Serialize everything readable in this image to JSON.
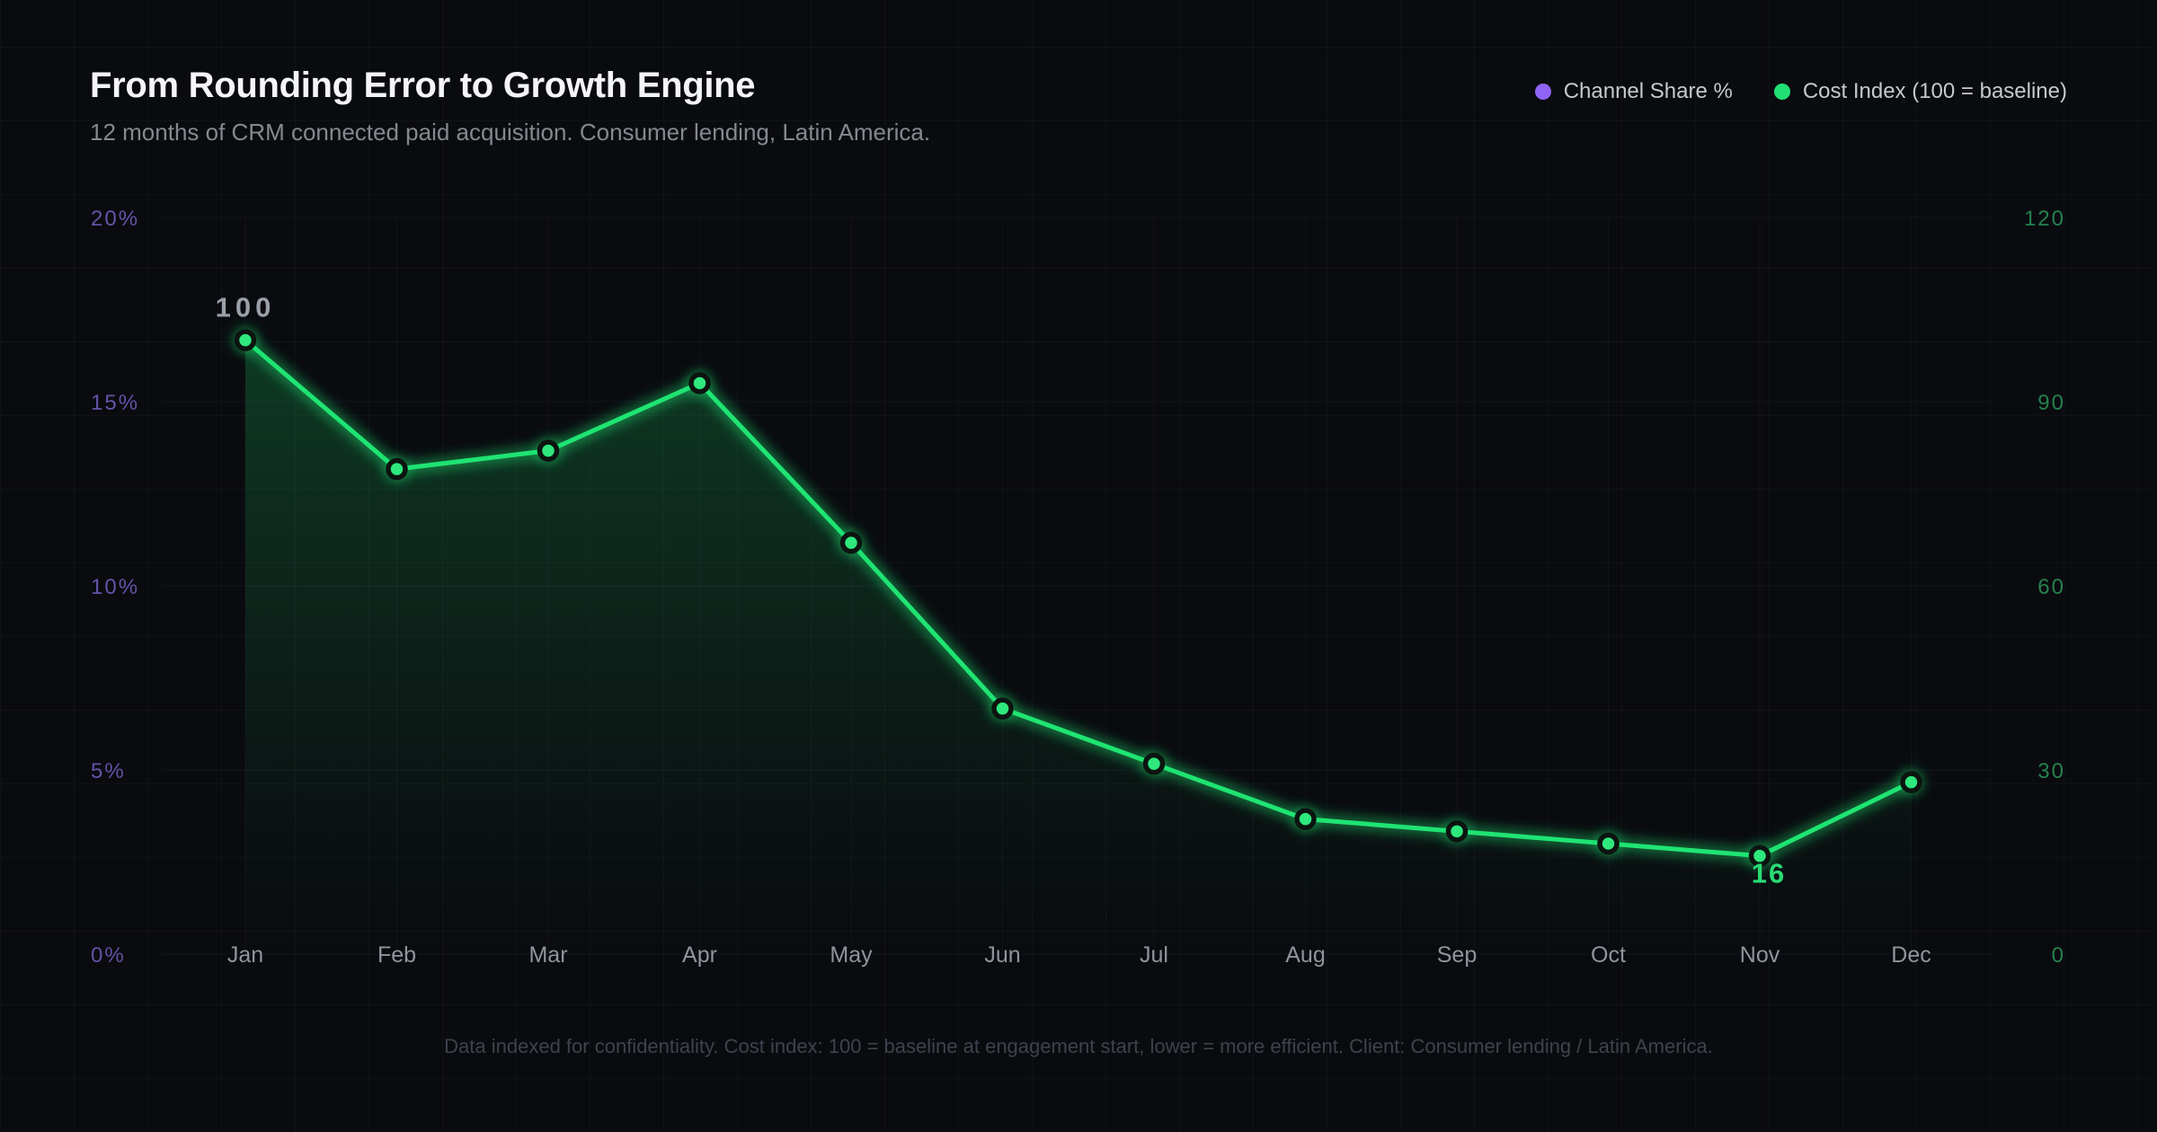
{
  "header": {
    "title": "From Rounding Error to Growth Engine",
    "subtitle": "12 months of CRM connected paid acquisition. Consumer lending, Latin America."
  },
  "legend": {
    "items": [
      {
        "label": "Channel Share %",
        "color": "#8f63f6"
      },
      {
        "label": "Cost Index (100 = baseline)",
        "color": "#22e076"
      }
    ]
  },
  "chart_data": {
    "type": "line",
    "title": "From Rounding Error to Growth Engine",
    "x": [
      "Jan",
      "Feb",
      "Mar",
      "Apr",
      "May",
      "Jun",
      "Jul",
      "Aug",
      "Sep",
      "Oct",
      "Nov",
      "Dec"
    ],
    "series": [
      {
        "name": "Cost Index (100 = baseline)",
        "axis": "right",
        "color": "#1fe472",
        "point_fill": "#2ee87d",
        "point_ring": "#0c1410",
        "values": [
          100,
          79,
          82,
          93,
          67,
          40,
          31,
          22,
          20,
          18,
          16,
          28
        ]
      }
    ],
    "legend_only_series": [
      {
        "name": "Channel Share %",
        "axis": "left",
        "color": "#8f63f6",
        "note": "legend and left axis only; no line visible"
      }
    ],
    "left_axis": {
      "name": "Channel Share %",
      "ticks": [
        "0%",
        "5%",
        "10%",
        "15%",
        "20%"
      ],
      "range": [
        0,
        20
      ],
      "label_color": "#6354a6"
    },
    "right_axis": {
      "name": "Cost Index",
      "ticks": [
        "0",
        "30",
        "60",
        "90",
        "120"
      ],
      "range": [
        0,
        120
      ],
      "label_color": "#26814f"
    },
    "x_label_color": "#8f949c",
    "annotations": [
      {
        "text": "100",
        "x": "Jan",
        "value": 100,
        "position": "above",
        "color": "#9aa1a8"
      },
      {
        "text": "16",
        "x": "Nov",
        "value": 16,
        "position": "below",
        "color": "#29db74"
      }
    ],
    "grid": true,
    "legend_position": "top-right"
  },
  "footer": {
    "note": "Data indexed for confidentiality. Cost index: 100 = baseline at engagement start, lower = more efficient. Client: Consumer lending / Latin America."
  }
}
